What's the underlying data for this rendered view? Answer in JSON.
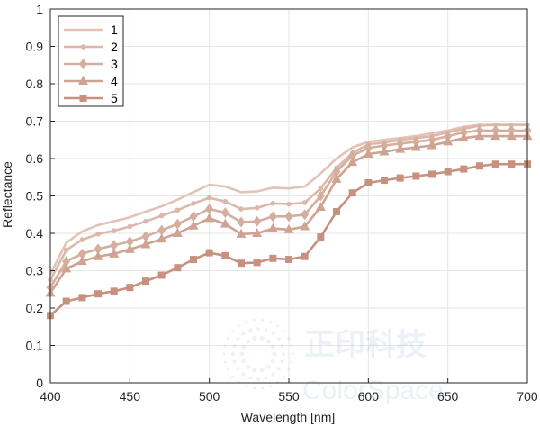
{
  "chart_data": {
    "type": "line",
    "xlabel": "Wavelength [nm]",
    "ylabel": "Reflectance",
    "xlim": [
      400,
      700
    ],
    "ylim": [
      0,
      1
    ],
    "xticks": [
      400,
      450,
      500,
      550,
      600,
      650,
      700
    ],
    "yticks": [
      0,
      0.1,
      0.2,
      0.3,
      0.4,
      0.5,
      0.6,
      0.7,
      0.8,
      0.9,
      1
    ],
    "ytick_labels": [
      "0",
      "0.1",
      "0.2",
      "0.3",
      "0.4",
      "0.5",
      "0.6",
      "0.7",
      "0.8",
      "0.9",
      "1"
    ],
    "grid": true,
    "legend_position": "top-left",
    "x": [
      400,
      410,
      420,
      430,
      440,
      450,
      460,
      470,
      480,
      490,
      500,
      510,
      520,
      530,
      540,
      550,
      560,
      570,
      580,
      590,
      600,
      610,
      620,
      630,
      640,
      650,
      660,
      670,
      680,
      690,
      700
    ],
    "series": [
      {
        "name": "1",
        "marker": "none",
        "color": "#e2c3b6",
        "values": [
          0.29,
          0.375,
          0.405,
          0.422,
          0.432,
          0.443,
          0.458,
          0.472,
          0.49,
          0.51,
          0.53,
          0.525,
          0.51,
          0.512,
          0.522,
          0.52,
          0.525,
          0.56,
          0.6,
          0.63,
          0.645,
          0.65,
          0.655,
          0.66,
          0.668,
          0.675,
          0.685,
          0.69,
          0.69,
          0.69,
          0.69
        ]
      },
      {
        "name": "2",
        "marker": "dot",
        "color": "#dcb8aa",
        "values": [
          0.275,
          0.355,
          0.383,
          0.398,
          0.407,
          0.418,
          0.432,
          0.447,
          0.462,
          0.48,
          0.495,
          0.485,
          0.465,
          0.468,
          0.48,
          0.478,
          0.482,
          0.52,
          0.575,
          0.615,
          0.638,
          0.643,
          0.65,
          0.655,
          0.66,
          0.67,
          0.68,
          0.688,
          0.69,
          0.69,
          0.69
        ]
      },
      {
        "name": "3",
        "marker": "diamond",
        "color": "#d6ae9e",
        "values": [
          0.255,
          0.325,
          0.345,
          0.358,
          0.368,
          0.378,
          0.392,
          0.408,
          0.425,
          0.445,
          0.465,
          0.455,
          0.43,
          0.432,
          0.445,
          0.445,
          0.45,
          0.5,
          0.565,
          0.608,
          0.628,
          0.635,
          0.64,
          0.645,
          0.65,
          0.66,
          0.67,
          0.675,
          0.675,
          0.675,
          0.675
        ]
      },
      {
        "name": "4",
        "marker": "triangle",
        "color": "#cfa392",
        "values": [
          0.24,
          0.305,
          0.325,
          0.338,
          0.345,
          0.357,
          0.37,
          0.385,
          0.4,
          0.42,
          0.44,
          0.425,
          0.398,
          0.4,
          0.413,
          0.41,
          0.418,
          0.47,
          0.545,
          0.59,
          0.612,
          0.618,
          0.625,
          0.63,
          0.635,
          0.645,
          0.655,
          0.66,
          0.66,
          0.66,
          0.66
        ]
      },
      {
        "name": "5",
        "marker": "square",
        "color": "#c8917f",
        "values": [
          0.18,
          0.218,
          0.228,
          0.238,
          0.245,
          0.255,
          0.272,
          0.288,
          0.308,
          0.33,
          0.348,
          0.34,
          0.32,
          0.322,
          0.333,
          0.33,
          0.338,
          0.39,
          0.458,
          0.508,
          0.535,
          0.542,
          0.548,
          0.553,
          0.558,
          0.565,
          0.572,
          0.58,
          0.585,
          0.585,
          0.585
        ]
      }
    ]
  },
  "watermark": {
    "cn": "正印科技",
    "en": "ColorSpace"
  }
}
